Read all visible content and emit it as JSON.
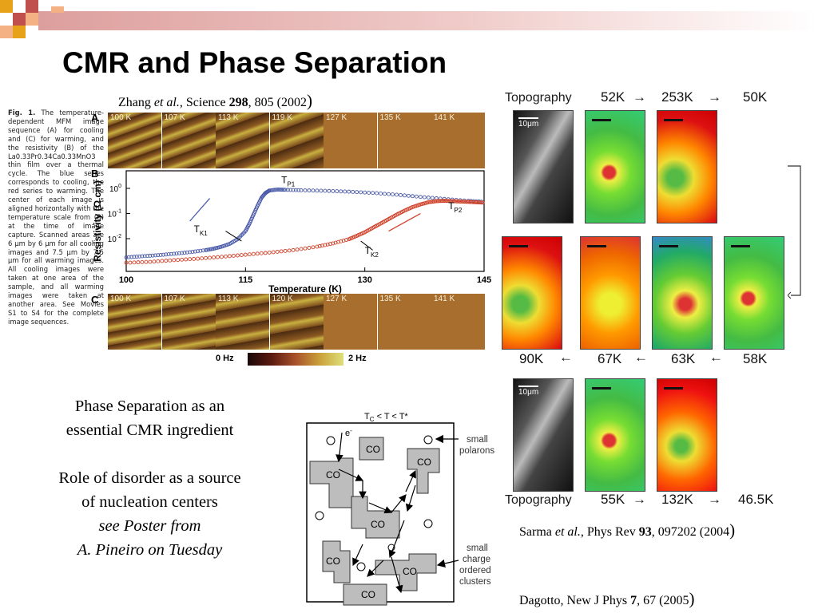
{
  "slide": {
    "title": "CMR and Phase Separation",
    "accent_colors": [
      "#c0504d",
      "#f4b183",
      "#e8a21a"
    ]
  },
  "citations": {
    "zhang": {
      "authors": "Zhang",
      "etal": "et al.",
      "journal": ", Science ",
      "volume": "298",
      "rest": ", 805 (2002",
      "close": ")"
    },
    "sarma": {
      "authors": "Sarma",
      "etal": "et al.",
      "journal": ", Phys Rev ",
      "volume": "93",
      "rest": ", 097202 (2004",
      "close": ")"
    },
    "dagotto": {
      "authors": "Dagotto, New J Phys ",
      "volume": "7",
      "rest": ", 67 (2005",
      "close": ")"
    }
  },
  "figure1": {
    "caption_bold": "Fig. 1.",
    "caption_text": "The temperature-dependent MFM image sequence (A) for cooling and (C) for warming, and the resistivity (B) of the La0.33Pr0.34Ca0.33MnO3 thin film over a thermal cycle. The blue series corresponds to cooling, the red series to warming. The center of each image is aligned horizontally with the temperature scale from (B) at the time of image capture. Scanned areas are 6 μm by 6 μm for all cooling images and 7.5 μm by 7.5 μm for all warming images. All cooling images were taken at one area of the sample, and all warming images were taken at another area. See Movies S1 to S4 for the complete image sequences.",
    "panel_a": "A",
    "panel_b": "B",
    "panel_c": "C",
    "row_a_labels": [
      "100 K",
      "107 K",
      "113 K",
      "119 K",
      "127 K",
      "135 K",
      "141 K"
    ],
    "row_c_labels": [
      "100 K",
      "107 K",
      "113 K",
      "120 K",
      "127 K",
      "135 K",
      "141 K"
    ],
    "colorbar": {
      "min_label": "0 Hz",
      "max_label": "2 Hz"
    }
  },
  "chart_data": {
    "type": "scatter",
    "xlabel": "Temperature (K)",
    "ylabel": "Resistivity (Ω cm)",
    "xlim": [
      100,
      145
    ],
    "log_y": true,
    "ylim": [
      0.0005,
      5
    ],
    "x_ticks": [
      "100",
      "115",
      "130",
      "145"
    ],
    "y_ticks": [
      "10",
      "10",
      "10",
      "10"
    ],
    "y_tick_exponents": [
      "1",
      "0",
      "-1",
      "-2"
    ],
    "y_tick_values": [
      10,
      1,
      0.1,
      0.01
    ],
    "annotations": [
      {
        "text": "T",
        "sub": "P1",
        "x": 119.5,
        "y": 1.6
      },
      {
        "text": "T",
        "sub": "P2",
        "x": 140.5,
        "y": 0.15
      },
      {
        "text": "T",
        "sub": "K1",
        "x": 108.5,
        "y": 0.018
      },
      {
        "text": "T",
        "sub": "K2",
        "x": 130,
        "y": 0.0025
      }
    ],
    "series": [
      {
        "color": "#4a5aa8",
        "x": [
          100,
          102,
          104,
          106,
          108,
          110,
          111,
          112,
          113,
          114,
          115,
          115.5,
          116,
          116.5,
          117,
          117.5,
          118,
          119,
          120,
          122,
          125,
          128,
          131,
          134,
          137,
          140,
          143,
          145
        ],
        "y": [
          0.0018,
          0.002,
          0.0022,
          0.0025,
          0.0029,
          0.0035,
          0.004,
          0.0048,
          0.0062,
          0.0095,
          0.02,
          0.04,
          0.09,
          0.2,
          0.42,
          0.65,
          0.82,
          0.9,
          0.88,
          0.84,
          0.8,
          0.74,
          0.66,
          0.56,
          0.46,
          0.38,
          0.32,
          0.29
        ]
      },
      {
        "color": "#d0422a",
        "x": [
          100,
          103,
          106,
          109,
          112,
          115,
          118,
          121,
          124,
          126,
          128,
          129,
          130,
          131,
          132,
          133,
          134,
          135,
          136,
          137,
          138,
          139,
          140,
          141,
          142,
          143,
          144,
          145
        ],
        "y": [
          0.0011,
          0.0012,
          0.0014,
          0.0016,
          0.0019,
          0.0023,
          0.0028,
          0.0035,
          0.0048,
          0.0065,
          0.0095,
          0.013,
          0.018,
          0.027,
          0.04,
          0.06,
          0.09,
          0.13,
          0.18,
          0.23,
          0.28,
          0.31,
          0.32,
          0.31,
          0.3,
          0.29,
          0.28,
          0.27
        ]
      }
    ]
  },
  "body": {
    "line1": "Phase Separation as an",
    "line2": "essential CMR ingredient",
    "line3": "Role of disorder as a source",
    "line4": "of nucleation centers",
    "line5": "see Poster from",
    "line6": "A. Pineiro on Tuesday"
  },
  "diagram": {
    "title": "T",
    "title_sub": "C",
    "title_rest": " < T < T*",
    "electron": "e",
    "electron_sup": "-",
    "co_label": "CO",
    "label_polarons": [
      "small",
      "polarons"
    ],
    "label_clusters": [
      "small",
      "charge",
      "ordered",
      "clusters"
    ]
  },
  "mfm": {
    "topography": "Topography",
    "scale": "10μm",
    "row1": [
      "52K",
      "253K",
      "50K"
    ],
    "row2": [
      "90K",
      "67K",
      "63K",
      "58K"
    ],
    "row3": [
      "55K",
      "132K",
      "46.5K"
    ],
    "arrow": "→"
  }
}
